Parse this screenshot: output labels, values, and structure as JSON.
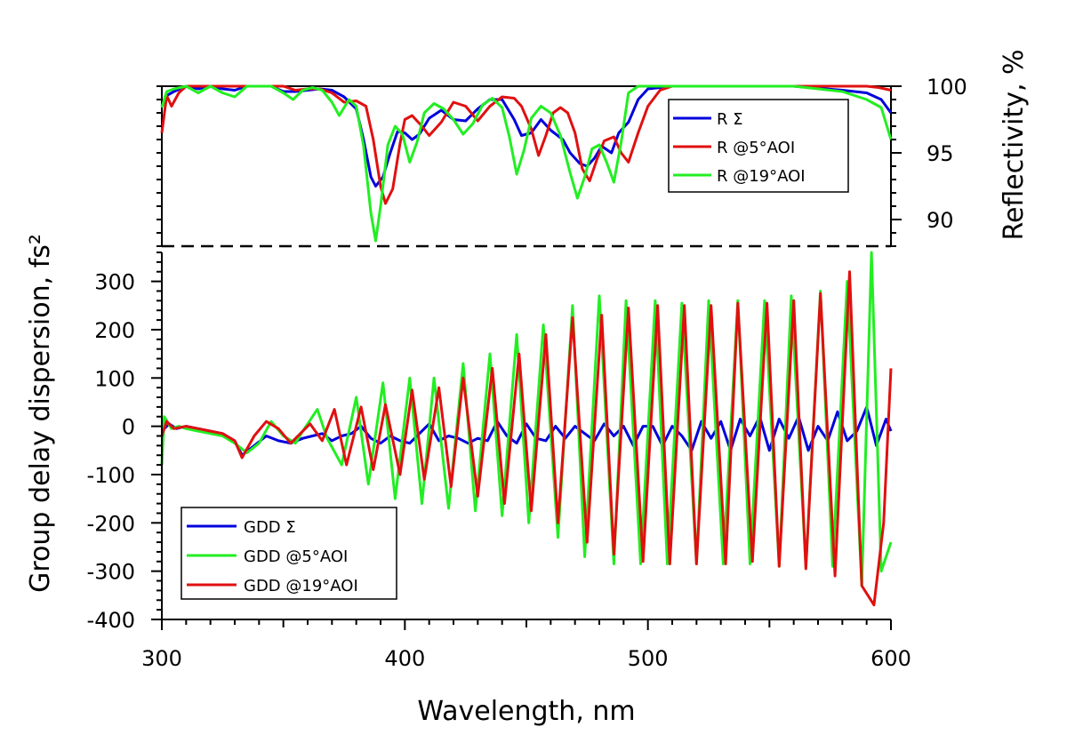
{
  "colors": {
    "blue": "#0000dd",
    "red": "#e01010",
    "green": "#22ee22"
  },
  "chart_data": [
    {
      "type": "line",
      "panel": "top",
      "ylabel": "Reflectivity, %",
      "xlim": [
        300,
        600
      ],
      "ylim": [
        88,
        100
      ],
      "yticks": [
        90,
        95,
        100
      ],
      "legend_position": "top-right",
      "series": [
        {
          "name": "R Σ",
          "color": "blue",
          "x": [
            300,
            302,
            305,
            310,
            315,
            320,
            325,
            330,
            335,
            340,
            345,
            350,
            355,
            360,
            365,
            370,
            375,
            380,
            383,
            386,
            388,
            391,
            394,
            397,
            400,
            403,
            406,
            410,
            415,
            420,
            425,
            430,
            435,
            440,
            445,
            448,
            452,
            456,
            460,
            465,
            468,
            472,
            475,
            478,
            481,
            485,
            488,
            492,
            496,
            500,
            510,
            520,
            540,
            560,
            580,
            590,
            596,
            600
          ],
          "y": [
            98.5,
            99.3,
            99.6,
            100,
            99.8,
            100,
            99.8,
            99.7,
            100,
            100,
            100,
            99.6,
            99.6,
            99.7,
            99.8,
            99.7,
            99.2,
            98.3,
            96,
            93.2,
            92.5,
            93.2,
            95,
            96.6,
            96.5,
            96,
            96.4,
            97.6,
            98.2,
            97.5,
            97.4,
            98.3,
            99,
            99,
            97.5,
            96.3,
            96.5,
            97.5,
            96.7,
            96,
            95,
            94.2,
            94,
            94.6,
            95.5,
            95,
            96.5,
            97.3,
            99,
            99.8,
            100,
            100,
            100,
            100,
            99.7,
            99.5,
            99,
            98
          ]
        },
        {
          "name": "R @5°AOI",
          "color": "red",
          "x": [
            300,
            302,
            304,
            307,
            310,
            315,
            320,
            325,
            330,
            335,
            340,
            345,
            350,
            355,
            360,
            365,
            370,
            375,
            380,
            384,
            387,
            390,
            392,
            395,
            398,
            400,
            403,
            407,
            410,
            415,
            420,
            425,
            430,
            435,
            440,
            445,
            448,
            452,
            455,
            458,
            461,
            464,
            467,
            470,
            473,
            476,
            479,
            482,
            486,
            489,
            492,
            496,
            500,
            505,
            510,
            520,
            540,
            560,
            580,
            590,
            595,
            600
          ],
          "y": [
            96.5,
            99.3,
            98.5,
            99.5,
            100,
            100,
            100,
            100,
            100,
            100,
            100,
            100,
            100,
            99.7,
            99.8,
            99.8,
            99.5,
            98.8,
            98.9,
            98.5,
            96,
            92.5,
            91.2,
            92.3,
            95.7,
            97.5,
            97.8,
            97,
            96.3,
            97.3,
            98.8,
            98.5,
            97.4,
            98.5,
            99.2,
            99.1,
            98.5,
            96.8,
            94.8,
            96.3,
            98,
            98.4,
            98,
            96.5,
            93.8,
            92.9,
            94.5,
            95.9,
            96.2,
            95,
            94.3,
            96.5,
            98.5,
            99.7,
            100,
            100,
            100,
            100,
            100,
            100,
            99.9,
            99.7
          ]
        },
        {
          "name": "R @19°AOI",
          "color": "green",
          "x": [
            300,
            302,
            305,
            310,
            315,
            320,
            325,
            330,
            335,
            340,
            345,
            350,
            354,
            358,
            362,
            366,
            370,
            373,
            377,
            380,
            383,
            386,
            388,
            390,
            393,
            396,
            399,
            402,
            405,
            408,
            412,
            416,
            420,
            424,
            428,
            432,
            436,
            440,
            443,
            446,
            449,
            452,
            456,
            460,
            464,
            468,
            471,
            474,
            477,
            480,
            483,
            486,
            489,
            492,
            496,
            500,
            510,
            520,
            540,
            560,
            580,
            590,
            596,
            600
          ],
          "y": [
            98.4,
            99.6,
            99.8,
            100,
            99.5,
            100,
            99.5,
            99.2,
            100,
            100,
            100,
            99.5,
            99,
            99.7,
            99.9,
            99.7,
            98.8,
            97.8,
            99,
            98.5,
            95.5,
            90.5,
            88.4,
            91,
            95.6,
            97,
            96.4,
            94.3,
            95.8,
            98,
            98.7,
            98.3,
            97.5,
            96.4,
            97.2,
            98.6,
            99.1,
            98.4,
            96.2,
            93.4,
            95.2,
            97.6,
            98.5,
            98,
            96.3,
            93.5,
            91.6,
            93.2,
            95.3,
            95.6,
            94.3,
            92.8,
            95.8,
            99.5,
            100,
            100,
            100,
            100,
            100,
            100,
            99.6,
            99,
            98.4,
            96
          ]
        }
      ]
    },
    {
      "type": "line",
      "panel": "bottom",
      "xlabel": "Wavelength, nm",
      "ylabel": "Group delay dispersion, fs²",
      "xlim": [
        300,
        600
      ],
      "ylim": [
        -400,
        360
      ],
      "xticks": [
        300,
        400,
        500,
        600
      ],
      "yticks": [
        -400,
        -300,
        -200,
        -100,
        0,
        100,
        200,
        300
      ],
      "legend_position": "bottom-left",
      "series": [
        {
          "name": "GDD Σ",
          "color": "blue",
          "x": [
            300,
            303,
            306,
            310,
            315,
            320,
            325,
            330,
            333,
            338,
            343,
            348,
            353,
            358,
            362,
            366,
            370,
            374,
            378,
            382,
            386,
            390,
            394,
            398,
            402,
            406,
            410,
            414,
            418,
            422,
            426,
            430,
            434,
            438,
            442,
            446,
            450,
            454,
            458,
            462,
            466,
            470,
            474,
            478,
            482,
            486,
            490,
            494,
            498,
            502,
            506,
            510,
            514,
            518,
            522,
            526,
            530,
            534,
            538,
            542,
            546,
            550,
            554,
            558,
            562,
            566,
            570,
            574,
            578,
            582,
            586,
            590,
            594,
            598,
            600
          ],
          "y": [
            -10,
            5,
            -5,
            0,
            -5,
            -10,
            -15,
            -30,
            -60,
            -40,
            -20,
            -30,
            -35,
            -25,
            -20,
            -15,
            -30,
            -20,
            -15,
            0,
            -25,
            -35,
            -20,
            -30,
            -35,
            -15,
            5,
            -30,
            -20,
            -25,
            -35,
            -25,
            -30,
            10,
            -20,
            -35,
            5,
            -25,
            -30,
            0,
            -25,
            0,
            -15,
            -30,
            5,
            -20,
            0,
            -40,
            0,
            0,
            -40,
            0,
            -20,
            -50,
            10,
            -25,
            10,
            -50,
            15,
            -20,
            20,
            -50,
            15,
            -25,
            20,
            -50,
            0,
            -30,
            30,
            -30,
            -10,
            40,
            -40,
            15,
            -10
          ]
        },
        {
          "name": "GDD @5°AOI",
          "color": "green",
          "x": [
            300,
            301,
            304,
            307,
            310,
            315,
            320,
            325,
            330,
            335,
            340,
            345,
            350,
            355,
            358,
            364,
            368,
            374,
            380,
            385,
            391,
            396,
            402,
            407,
            412,
            418,
            424,
            429,
            435,
            440,
            446,
            451,
            457,
            463,
            469,
            474,
            480,
            486,
            491,
            497,
            503,
            508,
            514,
            520,
            525,
            531,
            537,
            542,
            548,
            554,
            559,
            565,
            571,
            576,
            582,
            588,
            592,
            596,
            600
          ],
          "y": [
            -80,
            20,
            -5,
            0,
            -5,
            -10,
            -15,
            -20,
            -35,
            -55,
            -35,
            10,
            -20,
            -35,
            -10,
            35,
            -25,
            -80,
            60,
            -120,
            90,
            -150,
            100,
            -160,
            100,
            -170,
            130,
            -175,
            150,
            -185,
            190,
            -200,
            210,
            -230,
            250,
            -270,
            270,
            -285,
            260,
            -285,
            260,
            -285,
            255,
            -285,
            260,
            -285,
            260,
            -285,
            260,
            -290,
            270,
            -290,
            280,
            -290,
            300,
            -330,
            360,
            -300,
            -240
          ]
        },
        {
          "name": "GDD @19°AOI",
          "color": "red",
          "x": [
            300,
            302,
            305,
            310,
            315,
            320,
            325,
            330,
            333,
            338,
            343,
            348,
            353,
            357,
            361,
            366,
            371,
            376,
            382,
            387,
            392,
            398,
            403,
            408,
            414,
            419,
            424,
            430,
            436,
            441,
            447,
            452,
            458,
            463,
            469,
            475,
            481,
            486,
            492,
            498,
            504,
            509,
            515,
            520,
            526,
            532,
            537,
            543,
            549,
            554,
            560,
            565,
            571,
            577,
            583,
            588,
            593,
            597,
            600
          ],
          "y": [
            -20,
            10,
            -5,
            0,
            -5,
            -10,
            -15,
            -30,
            -65,
            -20,
            10,
            -5,
            -35,
            -15,
            5,
            -30,
            35,
            -80,
            40,
            -90,
            45,
            -100,
            75,
            -110,
            80,
            -125,
            100,
            -145,
            120,
            -160,
            150,
            -175,
            190,
            -200,
            225,
            -240,
            230,
            -265,
            245,
            -280,
            250,
            -285,
            250,
            -285,
            250,
            -285,
            255,
            -280,
            255,
            -290,
            260,
            -295,
            275,
            -310,
            320,
            -330,
            -370,
            -200,
            120
          ]
        }
      ]
    }
  ]
}
